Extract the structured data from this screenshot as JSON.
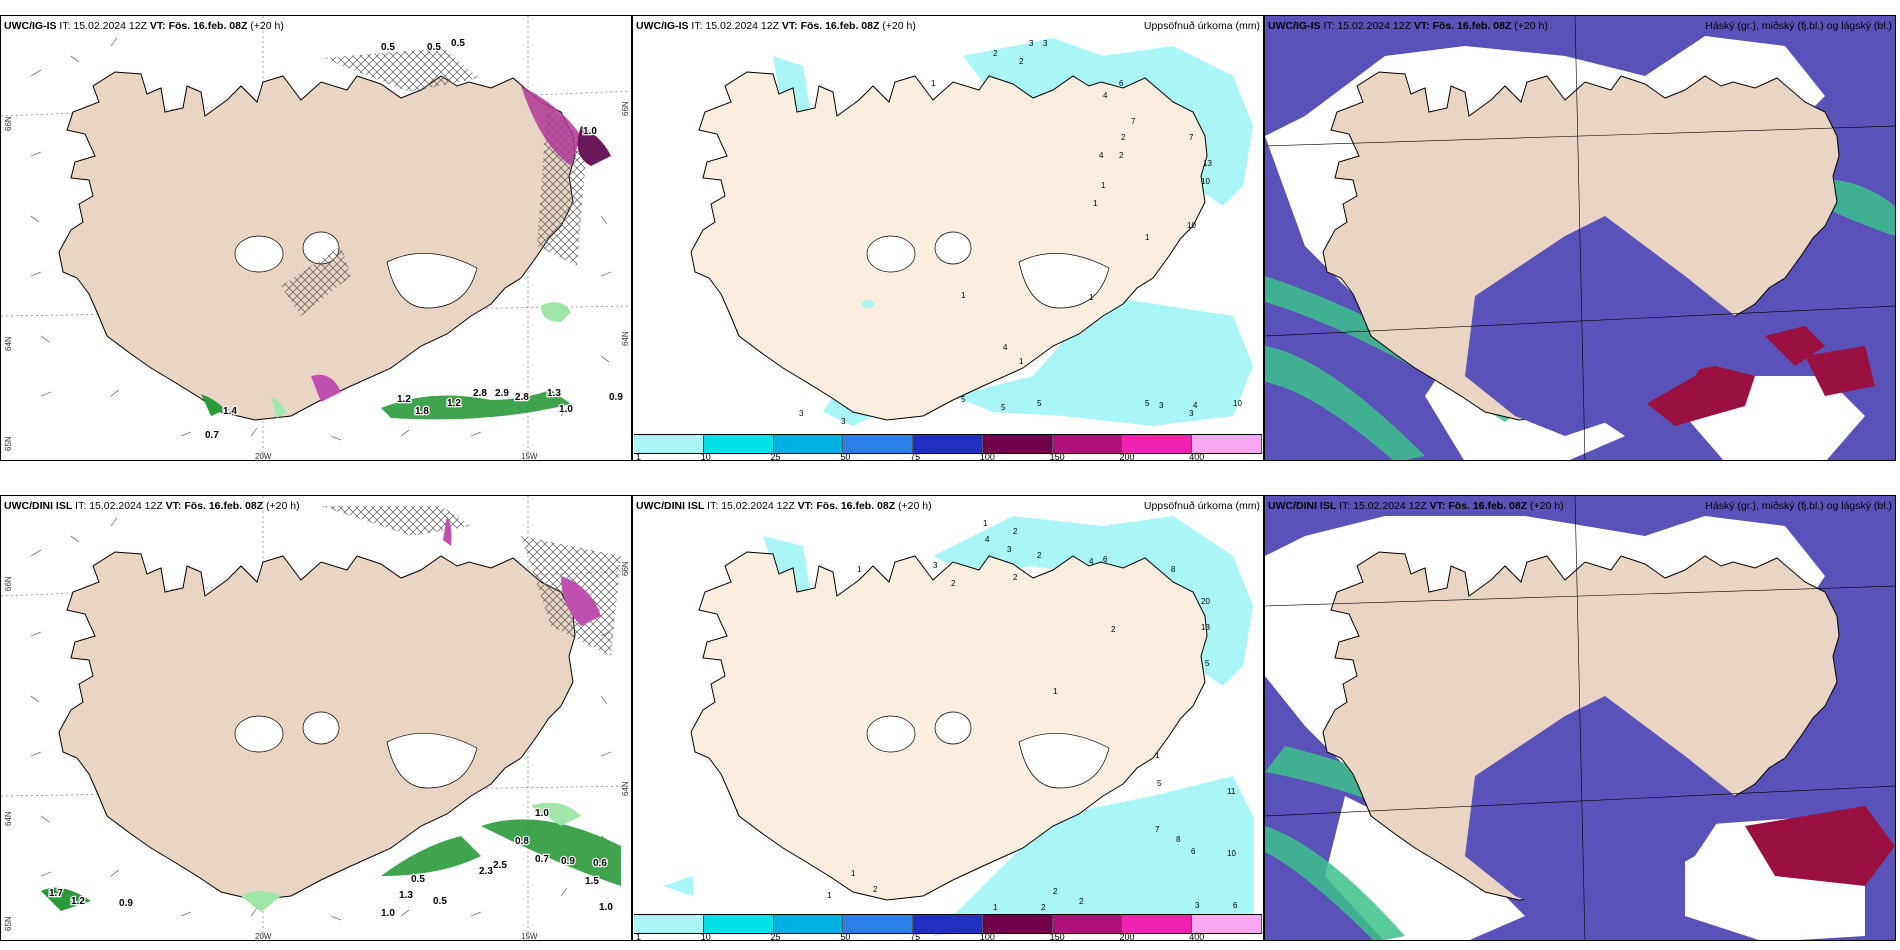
{
  "colors": {
    "land": "#e8d5c4",
    "land_light": "#fbeee0",
    "sea": "#ffffff",
    "precip_light": "#aaf6f6",
    "cloud_low": "#5a52b8",
    "cloud_high": "#3dc08a",
    "cloud_mid": "#9a1040",
    "hatch": "#555555",
    "pink": "#c050b0"
  },
  "colorbar": {
    "colors": [
      "#aaf6f6",
      "#00e0e8",
      "#00b0e0",
      "#2a80e8",
      "#2030c0",
      "#70004a",
      "#b0107a",
      "#f020b0",
      "#f6a8f0"
    ],
    "labels": [
      "1",
      "10",
      "25",
      "50",
      "75",
      "100",
      "150",
      "200",
      "400"
    ]
  },
  "grid_labels": {
    "lat_66": "66N",
    "lat_64": "64N",
    "lat_65": "65N",
    "lon_20w": "20W",
    "lon_15w": "15W"
  },
  "top_row": {
    "wind": {
      "model": "UWC/IG-IS",
      "it_label": "IT:",
      "it_value": "15.02.2024 12Z",
      "vt_label": "VT:",
      "vt_value": "Fös. 16.feb. 08Z",
      "lead": "(+20 h)",
      "title_right": "",
      "values": [
        "0.5",
        "0.5",
        "0.5",
        "1.0",
        "1.4",
        "0.7",
        "1.2",
        "1.8",
        "1.2",
        "2.8",
        "2.9",
        "2.8",
        "1.3",
        "1.0",
        "0.9"
      ]
    },
    "precip": {
      "model": "UWC/IG-IS",
      "it_label": "IT:",
      "it_value": "15.02.2024 12Z",
      "vt_label": "VT:",
      "vt_value": "Fös. 16.feb. 08Z",
      "lead": "(+20 h)",
      "title_right": "Uppsöfnuð úrkoma (mm)",
      "values": [
        "2",
        "3",
        "3",
        "2",
        "1",
        "4",
        "6",
        "7",
        "4",
        "7",
        "2",
        "2",
        "13",
        "10",
        "1",
        "1",
        "10",
        "1",
        "1",
        "1",
        "1",
        "5",
        "4",
        "3",
        "3",
        "5",
        "5",
        "5",
        "3",
        "4",
        "3",
        "10"
      ]
    },
    "cloud": {
      "model": "UWC/IG-IS",
      "it_label": "IT:",
      "it_value": "15.02.2024 12Z",
      "vt_label": "VT:",
      "vt_value": "Fös. 16.feb. 08Z",
      "lead": "(+20 h)",
      "title_right": "Háský (gr.), miðský (fj.bl.) og lágský (bl.)"
    }
  },
  "bottom_row": {
    "wind": {
      "model": "UWC/DINI ISL",
      "it_label": "IT:",
      "it_value": "15.02.2024 12Z",
      "vt_label": "VT:",
      "vt_value": "Fös. 16.feb. 08Z",
      "lead": "(+20 h)",
      "title_right": "",
      "values": [
        "1.0",
        "0.8",
        "0.7",
        "0.9",
        "0.6",
        "2.3",
        "2.5",
        "1.5",
        "0.5",
        "1.3",
        "0.5",
        "1.0",
        "1.7",
        "1.2",
        "0.9",
        "1.0"
      ]
    },
    "precip": {
      "model": "UWC/DINI ISL",
      "it_label": "IT:",
      "it_value": "15.02.2024 12Z",
      "vt_label": "VT:",
      "vt_value": "Fös. 16.feb. 08Z",
      "lead": "(+20 h)",
      "title_right": "Uppsöfnuð úrkoma (mm)",
      "values": [
        "2",
        "4",
        "3",
        "2",
        "2",
        "1",
        "3",
        "2",
        "1",
        "4",
        "6",
        "8",
        "2",
        "20",
        "13",
        "5",
        "1",
        "1",
        "5",
        "11",
        "7",
        "8",
        "6",
        "10",
        "1",
        "1",
        "2",
        "2",
        "2",
        "2",
        "1",
        "3",
        "6"
      ]
    },
    "cloud": {
      "model": "UWC/DINI ISL",
      "it_label": "IT:",
      "it_value": "15.02.2024 12Z",
      "vt_label": "VT:",
      "vt_value": "Fös. 16.feb. 08Z",
      "lead": "(+20 h)",
      "title_right": "Háský (gr.), miðský (fj.bl.) og lágský (bl.)"
    }
  }
}
